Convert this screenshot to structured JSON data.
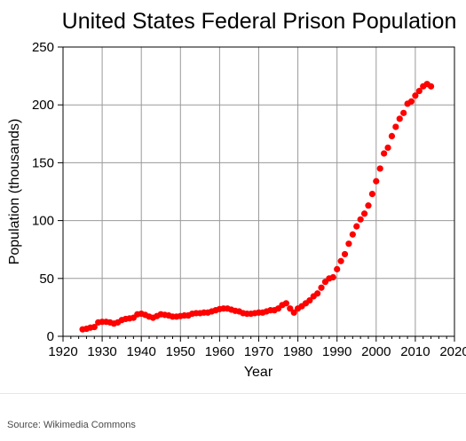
{
  "chart_data": {
    "type": "scatter",
    "title": "United States Federal Prison Population",
    "xlabel": "Year",
    "ylabel": "Population (thousands)",
    "xlim": [
      1920,
      2020
    ],
    "ylim": [
      0,
      250
    ],
    "xticks": [
      1920,
      1930,
      1940,
      1950,
      1960,
      1970,
      1980,
      1990,
      2000,
      2010,
      2020
    ],
    "yticks": [
      0,
      50,
      100,
      150,
      200,
      250
    ],
    "grid": true,
    "marker_color": "#ff0000",
    "points": [
      [
        1925,
        6
      ],
      [
        1926,
        6.5
      ],
      [
        1927,
        7.5
      ],
      [
        1928,
        8
      ],
      [
        1929,
        12
      ],
      [
        1930,
        12.5
      ],
      [
        1931,
        12.5
      ],
      [
        1932,
        12
      ],
      [
        1933,
        11
      ],
      [
        1934,
        12
      ],
      [
        1935,
        14
      ],
      [
        1936,
        15
      ],
      [
        1937,
        15.5
      ],
      [
        1938,
        16
      ],
      [
        1939,
        19
      ],
      [
        1940,
        19.5
      ],
      [
        1941,
        18.5
      ],
      [
        1942,
        17
      ],
      [
        1943,
        16
      ],
      [
        1944,
        17.5
      ],
      [
        1945,
        19
      ],
      [
        1946,
        18.5
      ],
      [
        1947,
        18
      ],
      [
        1948,
        17
      ],
      [
        1949,
        17
      ],
      [
        1950,
        17.5
      ],
      [
        1951,
        18
      ],
      [
        1952,
        18
      ],
      [
        1953,
        19.5
      ],
      [
        1954,
        20
      ],
      [
        1955,
        20
      ],
      [
        1956,
        20.5
      ],
      [
        1957,
        20.5
      ],
      [
        1958,
        21.5
      ],
      [
        1959,
        22.5
      ],
      [
        1960,
        23.5
      ],
      [
        1961,
        24
      ],
      [
        1962,
        24
      ],
      [
        1963,
        23
      ],
      [
        1964,
        22
      ],
      [
        1965,
        21.5
      ],
      [
        1966,
        20
      ],
      [
        1967,
        19.5
      ],
      [
        1968,
        19.5
      ],
      [
        1969,
        20
      ],
      [
        1970,
        20.5
      ],
      [
        1971,
        20.5
      ],
      [
        1972,
        21.5
      ],
      [
        1973,
        22.5
      ],
      [
        1974,
        22.5
      ],
      [
        1975,
        24
      ],
      [
        1976,
        27
      ],
      [
        1977,
        28.5
      ],
      [
        1978,
        24
      ],
      [
        1979,
        20.5
      ],
      [
        1980,
        24
      ],
      [
        1981,
        26
      ],
      [
        1982,
        28.5
      ],
      [
        1983,
        31
      ],
      [
        1984,
        34.5
      ],
      [
        1985,
        37
      ],
      [
        1986,
        42
      ],
      [
        1987,
        47
      ],
      [
        1988,
        50
      ],
      [
        1989,
        51
      ],
      [
        1990,
        58
      ],
      [
        1991,
        65
      ],
      [
        1992,
        71
      ],
      [
        1993,
        80
      ],
      [
        1994,
        88
      ],
      [
        1995,
        95
      ],
      [
        1996,
        101
      ],
      [
        1997,
        106
      ],
      [
        1998,
        113
      ],
      [
        1999,
        123
      ],
      [
        2000,
        134
      ],
      [
        2001,
        145
      ],
      [
        2002,
        158
      ],
      [
        2003,
        163
      ],
      [
        2004,
        173
      ],
      [
        2005,
        181
      ],
      [
        2006,
        188
      ],
      [
        2007,
        193
      ],
      [
        2008,
        201
      ],
      [
        2009,
        203
      ],
      [
        2010,
        208
      ],
      [
        2011,
        212
      ],
      [
        2012,
        216
      ],
      [
        2013,
        218
      ],
      [
        2014,
        216
      ]
    ]
  },
  "footer": {
    "source": "Source: Wikimedia Commons"
  }
}
